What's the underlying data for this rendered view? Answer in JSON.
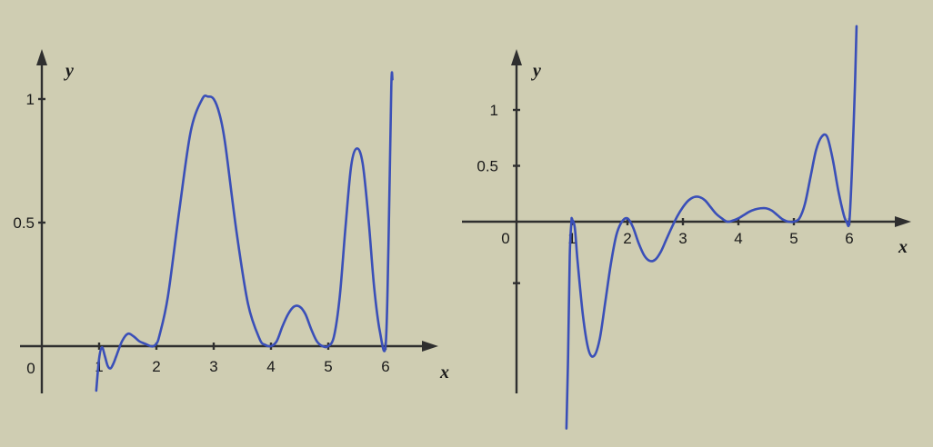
{
  "colors": {
    "background": "#cfcdb2",
    "curve": "#3a4fb8",
    "axis": "#2f2f2f"
  },
  "chart_data": [
    {
      "type": "line",
      "xlabel": "x",
      "ylabel": "y",
      "origin_label": "0",
      "x_ticks": [
        "1",
        "2",
        "3",
        "4",
        "5",
        "6"
      ],
      "y_ticks": [
        "0.5",
        "1"
      ],
      "xlim": [
        0,
        6.6
      ],
      "ylim": [
        -0.2,
        1.05
      ],
      "grid": false,
      "series": [
        {
          "x": [
            0.95,
            1.0,
            1.05,
            1.1,
            1.15,
            1.2,
            1.25,
            1.3,
            1.4,
            1.5,
            1.6,
            1.7,
            1.8,
            1.9,
            1.95,
            2.0,
            2.05,
            2.2,
            2.4,
            2.6,
            2.8,
            2.9,
            3.0,
            3.1,
            3.2,
            3.4,
            3.6,
            3.8,
            3.9,
            4.0,
            4.1,
            4.2,
            4.3,
            4.4,
            4.5,
            4.6,
            4.7,
            4.8,
            4.9,
            5.0,
            5.1,
            5.2,
            5.3,
            5.4,
            5.5,
            5.6,
            5.7,
            5.8,
            5.9,
            6.0,
            6.05,
            6.1,
            6.12
          ],
          "y": [
            -0.18,
            -0.05,
            -0.005,
            -0.04,
            -0.08,
            -0.09,
            -0.07,
            -0.04,
            0.02,
            0.05,
            0.04,
            0.02,
            0.01,
            0.0,
            0.0,
            0.01,
            0.04,
            0.2,
            0.55,
            0.87,
            1.0,
            1.01,
            1.0,
            0.94,
            0.82,
            0.46,
            0.17,
            0.03,
            0.005,
            0.0,
            0.02,
            0.08,
            0.13,
            0.16,
            0.16,
            0.13,
            0.07,
            0.02,
            0.0,
            0.0,
            0.04,
            0.2,
            0.48,
            0.73,
            0.8,
            0.74,
            0.52,
            0.24,
            0.06,
            0.0,
            0.4,
            1.05,
            1.08
          ]
        }
      ]
    },
    {
      "type": "line",
      "xlabel": "x",
      "ylabel": "y",
      "origin_label": "0",
      "x_ticks": [
        "1",
        "2",
        "3",
        "4",
        "5",
        "6"
      ],
      "y_ticks": [
        "0.5",
        "1"
      ],
      "xlim": [
        -1.0,
        6.9
      ],
      "ylim": [
        -1.9,
        1.75
      ],
      "grid": false,
      "series": [
        {
          "x": [
            0.9,
            0.93,
            0.96,
            0.99,
            1.0,
            1.05,
            1.1,
            1.2,
            1.3,
            1.4,
            1.5,
            1.6,
            1.7,
            1.8,
            1.9,
            2.0,
            2.1,
            2.2,
            2.3,
            2.4,
            2.5,
            2.6,
            2.7,
            2.8,
            2.9,
            3.0,
            3.1,
            3.2,
            3.3,
            3.4,
            3.5,
            3.6,
            3.7,
            3.8,
            3.9,
            4.0,
            4.1,
            4.2,
            4.3,
            4.4,
            4.5,
            4.6,
            4.7,
            4.8,
            4.9,
            5.0,
            5.1,
            5.2,
            5.3,
            5.4,
            5.5,
            5.6,
            5.7,
            5.8,
            5.9,
            5.95,
            6.0,
            6.05,
            6.1,
            6.13
          ],
          "y": [
            -1.85,
            -1.2,
            -0.3,
            0.0,
            0.02,
            -0.05,
            -0.35,
            -0.85,
            -1.15,
            -1.2,
            -1.05,
            -0.72,
            -0.38,
            -0.12,
            0.0,
            0.03,
            -0.05,
            -0.19,
            -0.3,
            -0.35,
            -0.34,
            -0.27,
            -0.16,
            -0.05,
            0.05,
            0.13,
            0.19,
            0.22,
            0.22,
            0.19,
            0.13,
            0.07,
            0.03,
            0.0,
            0.01,
            0.03,
            0.06,
            0.09,
            0.11,
            0.12,
            0.12,
            0.1,
            0.06,
            0.02,
            0.0,
            0.0,
            0.03,
            0.16,
            0.4,
            0.64,
            0.76,
            0.76,
            0.56,
            0.28,
            0.06,
            0.0,
            0.0,
            0.5,
            1.2,
            1.75
          ]
        }
      ]
    }
  ]
}
